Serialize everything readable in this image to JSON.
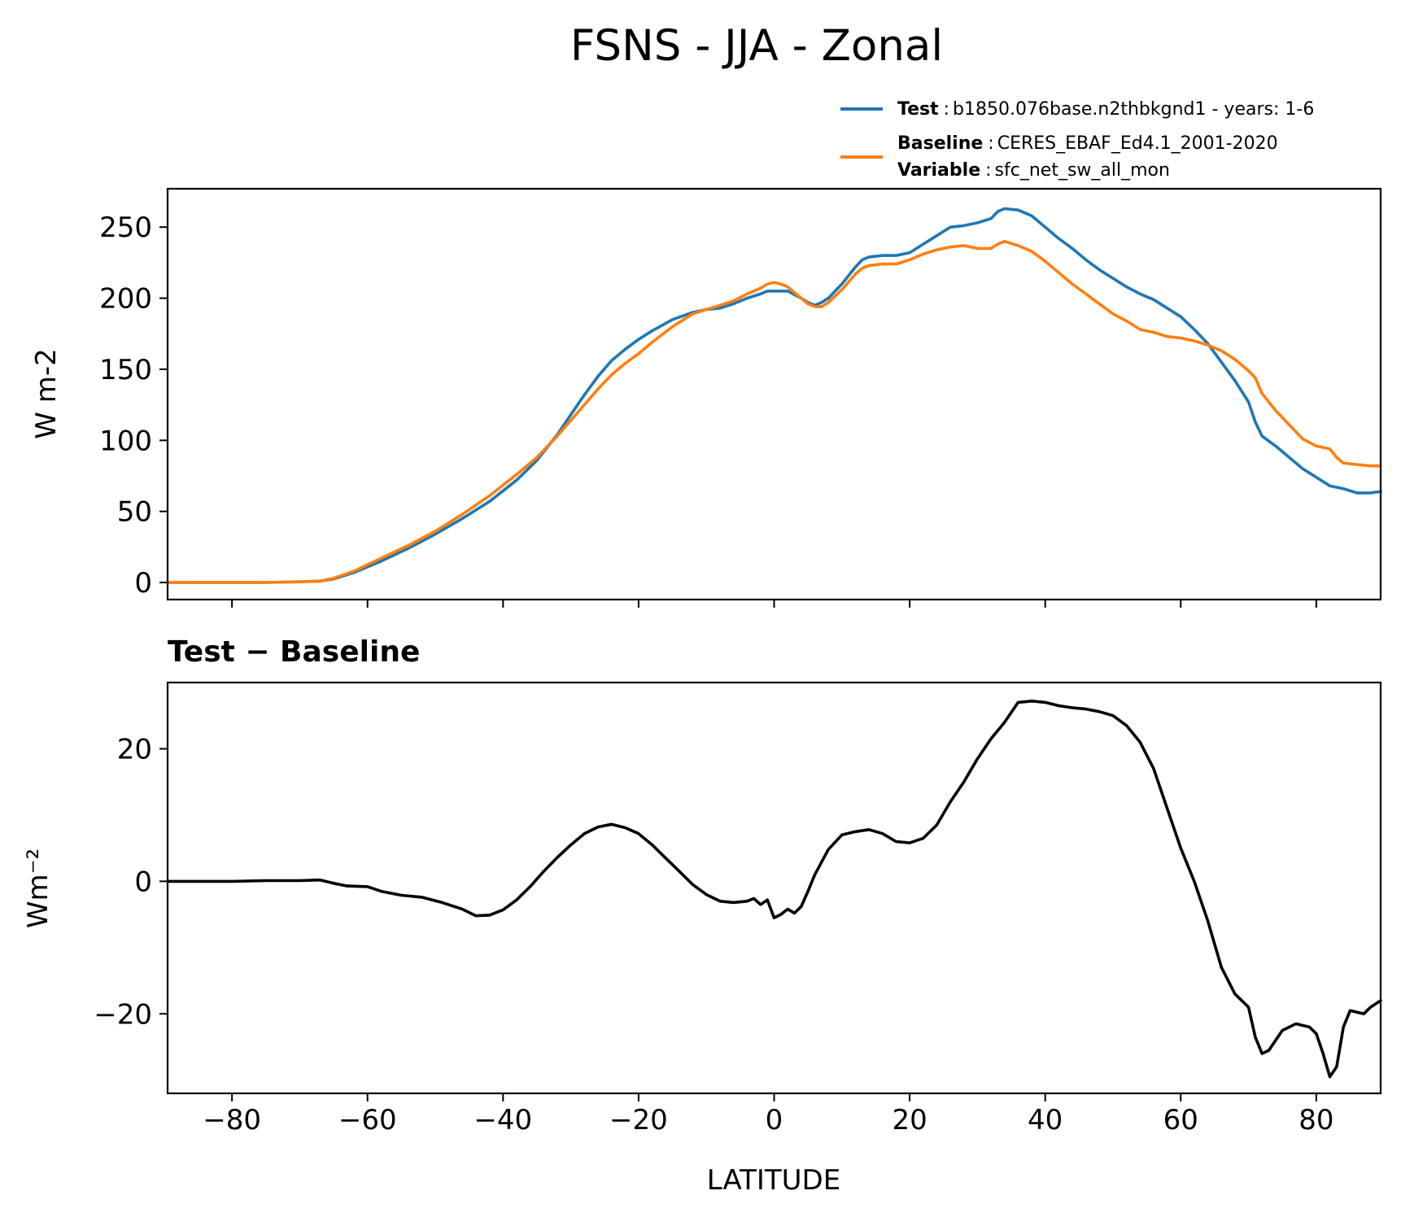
{
  "title": "FSNS - JJA - Zonal",
  "legend": {
    "placement": "top-right",
    "entries": [
      {
        "key": "Test",
        "sep": ":",
        "text": "b1850.076base.n2thbkgnd1 - years: 1-6",
        "color": "#1f77b4"
      },
      {
        "key": "Baseline",
        "sep": ":",
        "text": "CERES_EBAF_Ed4.1_2001-2020",
        "color": "#ff7f0e"
      },
      {
        "key": "Variable",
        "sep": ":",
        "text": "sfc_net_sw_all_mon"
      }
    ]
  },
  "chart_data": [
    {
      "type": "line",
      "ylabel": "W m-2",
      "xlim": [
        -89.5,
        89.5
      ],
      "ylim": [
        -12,
        277
      ],
      "yticks": [
        "0",
        "50",
        "100",
        "150",
        "200",
        "250"
      ],
      "xticks": [
        -80,
        -60,
        -40,
        -20,
        0,
        20,
        40,
        60,
        80
      ],
      "grid": false,
      "series": [
        {
          "name": "Test",
          "color": "#1f77b4",
          "points": [
            [
              -89.5,
              0
            ],
            [
              -80,
              0
            ],
            [
              -75,
              0
            ],
            [
              -70,
              0.5
            ],
            [
              -67,
              1
            ],
            [
              -65,
              2.5
            ],
            [
              -62,
              7
            ],
            [
              -58,
              15
            ],
            [
              -54,
              24
            ],
            [
              -50,
              34
            ],
            [
              -46,
              45
            ],
            [
              -42,
              57
            ],
            [
              -38,
              72
            ],
            [
              -35,
              86
            ],
            [
              -32,
              104
            ],
            [
              -30,
              118
            ],
            [
              -28,
              132
            ],
            [
              -26,
              145
            ],
            [
              -24,
              156
            ],
            [
              -22,
              164
            ],
            [
              -20,
              171
            ],
            [
              -18,
              177
            ],
            [
              -15,
              185
            ],
            [
              -12,
              190
            ],
            [
              -10,
              192
            ],
            [
              -8,
              193
            ],
            [
              -6,
              196
            ],
            [
              -4,
              200
            ],
            [
              -2,
              203
            ],
            [
              -1,
              205
            ],
            [
              0,
              205
            ],
            [
              1,
              205
            ],
            [
              2,
              205
            ],
            [
              4,
              200
            ],
            [
              5,
              197
            ],
            [
              6,
              195
            ],
            [
              7,
              197
            ],
            [
              8,
              200
            ],
            [
              10,
              210
            ],
            [
              12,
              222
            ],
            [
              13,
              227
            ],
            [
              14,
              229
            ],
            [
              16,
              230
            ],
            [
              18,
              230
            ],
            [
              20,
              232
            ],
            [
              22,
              238
            ],
            [
              24,
              244
            ],
            [
              26,
              250
            ],
            [
              28,
              251
            ],
            [
              30,
              253
            ],
            [
              32,
              256
            ],
            [
              33,
              261
            ],
            [
              34,
              263
            ],
            [
              36,
              262
            ],
            [
              38,
              258
            ],
            [
              40,
              250
            ],
            [
              42,
              242
            ],
            [
              44,
              235
            ],
            [
              46,
              227
            ],
            [
              48,
              220
            ],
            [
              50,
              214
            ],
            [
              52,
              208
            ],
            [
              54,
              203
            ],
            [
              56,
              199
            ],
            [
              58,
              193
            ],
            [
              60,
              187
            ],
            [
              62,
              178
            ],
            [
              64,
              168
            ],
            [
              66,
              155
            ],
            [
              68,
              142
            ],
            [
              70,
              127
            ],
            [
              71,
              113
            ],
            [
              72,
              103
            ],
            [
              74,
              96
            ],
            [
              76,
              88
            ],
            [
              78,
              80
            ],
            [
              80,
              74
            ],
            [
              82,
              68
            ],
            [
              84,
              66
            ],
            [
              86,
              63
            ],
            [
              88,
              63
            ],
            [
              89.5,
              64
            ]
          ]
        },
        {
          "name": "Baseline",
          "color": "#ff7f0e",
          "points": [
            [
              -89.5,
              0
            ],
            [
              -80,
              0
            ],
            [
              -75,
              0
            ],
            [
              -70,
              0.5
            ],
            [
              -67,
              1
            ],
            [
              -65,
              3
            ],
            [
              -62,
              8
            ],
            [
              -58,
              17
            ],
            [
              -54,
              26
            ],
            [
              -50,
              36
            ],
            [
              -46,
              48
            ],
            [
              -42,
              61
            ],
            [
              -38,
              76
            ],
            [
              -35,
              88
            ],
            [
              -32,
              103
            ],
            [
              -30,
              114
            ],
            [
              -28,
              125
            ],
            [
              -26,
              136
            ],
            [
              -24,
              146
            ],
            [
              -22,
              154
            ],
            [
              -20,
              161
            ],
            [
              -18,
              169
            ],
            [
              -15,
              180
            ],
            [
              -12,
              189
            ],
            [
              -10,
              192
            ],
            [
              -8,
              195
            ],
            [
              -6,
              198
            ],
            [
              -4,
              203
            ],
            [
              -2,
              207
            ],
            [
              -1,
              210
            ],
            [
              0,
              211
            ],
            [
              1,
              210
            ],
            [
              2,
              208
            ],
            [
              4,
              200
            ],
            [
              5,
              196
            ],
            [
              6,
              194
            ],
            [
              7,
              194
            ],
            [
              8,
              197
            ],
            [
              10,
              206
            ],
            [
              12,
              217
            ],
            [
              13,
              221
            ],
            [
              14,
              223
            ],
            [
              16,
              224
            ],
            [
              18,
              224
            ],
            [
              20,
              227
            ],
            [
              22,
              231
            ],
            [
              24,
              234
            ],
            [
              26,
              236
            ],
            [
              28,
              237
            ],
            [
              30,
              235
            ],
            [
              32,
              235
            ],
            [
              33,
              238
            ],
            [
              34,
              240
            ],
            [
              36,
              237
            ],
            [
              38,
              233
            ],
            [
              40,
              226
            ],
            [
              42,
              218
            ],
            [
              44,
              210
            ],
            [
              46,
              203
            ],
            [
              48,
              196
            ],
            [
              50,
              189
            ],
            [
              52,
              184
            ],
            [
              54,
              178
            ],
            [
              56,
              176
            ],
            [
              58,
              173
            ],
            [
              60,
              172
            ],
            [
              62,
              170
            ],
            [
              64,
              167
            ],
            [
              66,
              163
            ],
            [
              68,
              157
            ],
            [
              70,
              149
            ],
            [
              71,
              144
            ],
            [
              72,
              133
            ],
            [
              74,
              121
            ],
            [
              76,
              111
            ],
            [
              78,
              101
            ],
            [
              80,
              96
            ],
            [
              82,
              94
            ],
            [
              83,
              88
            ],
            [
              84,
              84
            ],
            [
              86,
              83
            ],
            [
              88,
              82
            ],
            [
              89.5,
              82
            ]
          ]
        }
      ]
    },
    {
      "type": "line",
      "title": "Test − Baseline",
      "xlabel": "LATITUDE",
      "ylabel": "Wm⁻²",
      "xlim": [
        -89.5,
        89.5
      ],
      "ylim": [
        -32,
        30
      ],
      "yticks": [
        "−20",
        "0",
        "20"
      ],
      "xticks": [
        "−80",
        "−60",
        "−40",
        "−20",
        "0",
        "20",
        "40",
        "60",
        "80"
      ],
      "grid": false,
      "series": [
        {
          "color": "#000000",
          "points": [
            [
              -89.5,
              0
            ],
            [
              -80,
              0
            ],
            [
              -75,
              0.1
            ],
            [
              -70,
              0.1
            ],
            [
              -67,
              0.2
            ],
            [
              -65,
              -0.3
            ],
            [
              -63,
              -0.7
            ],
            [
              -60,
              -0.8
            ],
            [
              -58,
              -1.5
            ],
            [
              -55,
              -2.1
            ],
            [
              -52,
              -2.4
            ],
            [
              -49,
              -3.2
            ],
            [
              -46,
              -4.2
            ],
            [
              -44,
              -5.2
            ],
            [
              -42,
              -5.1
            ],
            [
              -40,
              -4.3
            ],
            [
              -38,
              -2.8
            ],
            [
              -36,
              -0.8
            ],
            [
              -34,
              1.5
            ],
            [
              -32,
              3.6
            ],
            [
              -30,
              5.5
            ],
            [
              -28,
              7.2
            ],
            [
              -26,
              8.2
            ],
            [
              -24,
              8.6
            ],
            [
              -22,
              8.1
            ],
            [
              -20,
              7.2
            ],
            [
              -18,
              5.5
            ],
            [
              -16,
              3.5
            ],
            [
              -14,
              1.5
            ],
            [
              -12,
              -0.5
            ],
            [
              -10,
              -2
            ],
            [
              -8,
              -3
            ],
            [
              -6,
              -3.2
            ],
            [
              -4,
              -3
            ],
            [
              -3,
              -2.6
            ],
            [
              -2,
              -3.5
            ],
            [
              -1,
              -2.8
            ],
            [
              0,
              -5.5
            ],
            [
              1,
              -5
            ],
            [
              2,
              -4.2
            ],
            [
              3,
              -4.8
            ],
            [
              4,
              -3.8
            ],
            [
              5,
              -1.5
            ],
            [
              6,
              1
            ],
            [
              8,
              4.8
            ],
            [
              10,
              7
            ],
            [
              12,
              7.5
            ],
            [
              14,
              7.8
            ],
            [
              16,
              7.2
            ],
            [
              18,
              6
            ],
            [
              20,
              5.8
            ],
            [
              22,
              6.5
            ],
            [
              24,
              8.5
            ],
            [
              26,
              12
            ],
            [
              28,
              15
            ],
            [
              30,
              18.5
            ],
            [
              32,
              21.5
            ],
            [
              34,
              24
            ],
            [
              36,
              27
            ],
            [
              38,
              27.2
            ],
            [
              40,
              27
            ],
            [
              42,
              26.5
            ],
            [
              44,
              26.2
            ],
            [
              46,
              26
            ],
            [
              48,
              25.6
            ],
            [
              50,
              25
            ],
            [
              52,
              23.5
            ],
            [
              54,
              21
            ],
            [
              56,
              17
            ],
            [
              58,
              11
            ],
            [
              60,
              5
            ],
            [
              62,
              0
            ],
            [
              64,
              -6
            ],
            [
              66,
              -13
            ],
            [
              68,
              -17
            ],
            [
              70,
              -19
            ],
            [
              71,
              -23.5
            ],
            [
              72,
              -26
            ],
            [
              73,
              -25.5
            ],
            [
              75,
              -22.5
            ],
            [
              77,
              -21.5
            ],
            [
              79,
              -22
            ],
            [
              80,
              -23
            ],
            [
              81,
              -26
            ],
            [
              82,
              -29.5
            ],
            [
              83,
              -28
            ],
            [
              84,
              -22
            ],
            [
              85,
              -19.5
            ],
            [
              87,
              -20
            ],
            [
              88,
              -19
            ],
            [
              89.5,
              -18
            ]
          ]
        }
      ]
    }
  ]
}
